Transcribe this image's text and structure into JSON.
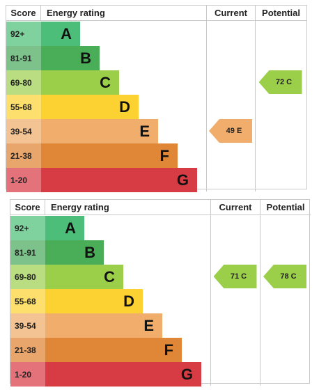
{
  "headers": {
    "score": "Score",
    "rating": "Energy rating",
    "current": "Current",
    "potential": "Potential"
  },
  "bands": [
    {
      "score": "92+",
      "letter": "A",
      "color": "#4cbe7a",
      "score_bg": "#7fd19e"
    },
    {
      "score": "81-91",
      "letter": "B",
      "color": "#4aae59",
      "score_bg": "#7dc28a"
    },
    {
      "score": "69-80",
      "letter": "C",
      "color": "#9ccf49",
      "score_bg": "#b9dd80"
    },
    {
      "score": "55-68",
      "letter": "D",
      "color": "#fbd231",
      "score_bg": "#fcdf6c"
    },
    {
      "score": "39-54",
      "letter": "E",
      "color": "#f0ad6c",
      "score_bg": "#f3c394"
    },
    {
      "score": "21-38",
      "letter": "F",
      "color": "#e08637",
      "score_bg": "#e8a56c"
    },
    {
      "score": "1-20",
      "letter": "G",
      "color": "#d73b43",
      "score_bg": "#e3727a"
    }
  ],
  "chart_data": [
    {
      "type": "bar",
      "categories": [
        "92+",
        "81-91",
        "69-80",
        "55-68",
        "39-54",
        "21-38",
        "1-20"
      ],
      "bands": [
        "A",
        "B",
        "C",
        "D",
        "E",
        "F",
        "G"
      ],
      "current": {
        "value": 49,
        "band": "E",
        "label": "49 E",
        "color": "#f0ad6c"
      },
      "potential": {
        "value": 72,
        "band": "C",
        "label": "72 C",
        "color": "#9ccf49"
      }
    },
    {
      "type": "bar",
      "categories": [
        "92+",
        "81-91",
        "69-80",
        "55-68",
        "39-54",
        "21-38",
        "1-20"
      ],
      "bands": [
        "A",
        "B",
        "C",
        "D",
        "E",
        "F",
        "G"
      ],
      "current": {
        "value": 71,
        "band": "C",
        "label": "71 C",
        "color": "#9ccf49"
      },
      "potential": {
        "value": 78,
        "band": "C",
        "label": "78 C",
        "color": "#9ccf49"
      }
    }
  ]
}
